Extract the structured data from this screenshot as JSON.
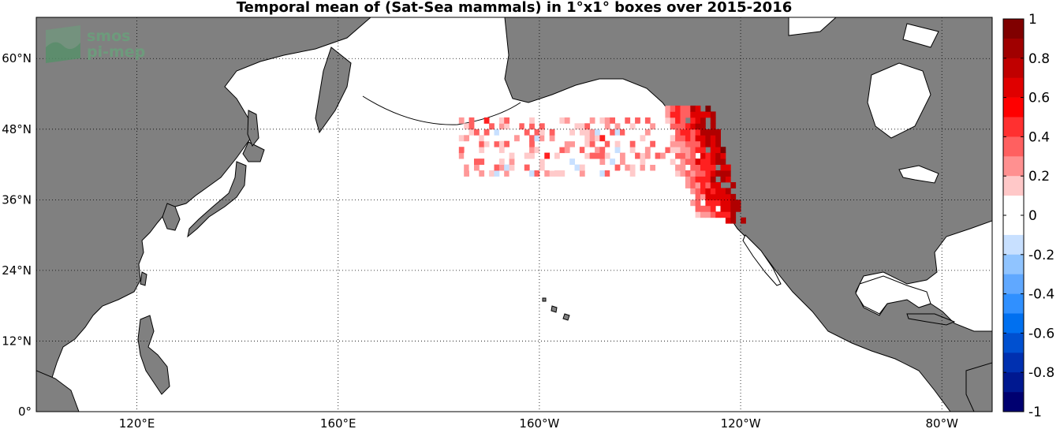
{
  "title": "Temporal mean of (Sat-Sea mammals) in 1°x1° boxes over 2015-2016",
  "logo": {
    "line1": "smos",
    "line2": "pi-mep"
  },
  "map": {
    "lon_range": [
      100,
      -70
    ],
    "lat_range": [
      0,
      67
    ],
    "lat_ticks": [
      {
        "lat": 60,
        "label": "60°N"
      },
      {
        "lat": 48,
        "label": "48°N"
      },
      {
        "lat": 36,
        "label": "36°N"
      },
      {
        "lat": 24,
        "label": "24°N"
      },
      {
        "lat": 12,
        "label": "12°N"
      },
      {
        "lat": 0,
        "label": "0°"
      }
    ],
    "lon_ticks": [
      {
        "lon": 120,
        "label": "120°E"
      },
      {
        "lon": 160,
        "label": "160°E"
      },
      {
        "lon": -160,
        "label": "160°W"
      },
      {
        "lon": -120,
        "label": "120°W"
      },
      {
        "lon": -80,
        "label": "80°W"
      }
    ],
    "grid": "dotted",
    "land_color": "#808080",
    "ocean_color": "#ffffff"
  },
  "colorbar": {
    "range": [
      -1,
      1
    ],
    "ticks": [
      "1",
      "0.8",
      "0.6",
      "0.4",
      "0.2",
      "0",
      "-0.2",
      "-0.4",
      "-0.6",
      "-0.8",
      "-1"
    ],
    "colors_top_to_bottom": [
      "#800000",
      "#a00000",
      "#c00000",
      "#e00000",
      "#ff0000",
      "#ff3030",
      "#ff6060",
      "#ff9090",
      "#ffc8c8",
      "#ffffff",
      "#ffffff",
      "#c8e0ff",
      "#90c4ff",
      "#60a8ff",
      "#3090ff",
      "#0070f0",
      "#0050d0",
      "#0030b0",
      "#001890",
      "#000070"
    ]
  }
}
